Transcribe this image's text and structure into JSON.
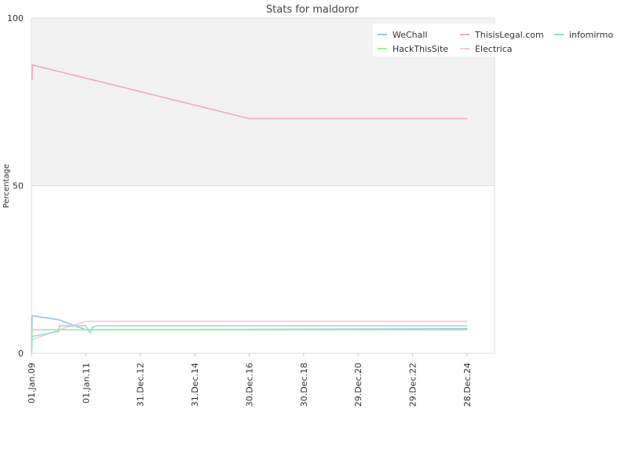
{
  "chart_data": {
    "type": "line",
    "title": "Stats for maldoror",
    "xlabel": "",
    "ylabel": "Percentage",
    "ylim": [
      0,
      100
    ],
    "yticks": [
      "0",
      "50",
      "100"
    ],
    "xlim": [
      "2009-01-01",
      "2026-01-01"
    ],
    "xticks": [
      {
        "date": "2009-01-01",
        "label": "01.Jan.09"
      },
      {
        "date": "2011-01-01",
        "label": "01.Jan.11"
      },
      {
        "date": "2012-12-31",
        "label": "31.Dec.12"
      },
      {
        "date": "2014-12-31",
        "label": "31.Dec.14"
      },
      {
        "date": "2016-12-30",
        "label": "30.Dec.16"
      },
      {
        "date": "2018-12-30",
        "label": "30.Dec.18"
      },
      {
        "date": "2020-12-29",
        "label": "29.Dec.20"
      },
      {
        "date": "2022-12-29",
        "label": "29.Dec.22"
      },
      {
        "date": "2024-12-28",
        "label": "28.Dec.24"
      }
    ],
    "grid": "band above 50",
    "legend_position": "top-right",
    "series": [
      {
        "name": "WeChall",
        "color": "#9fc0e6",
        "points": [
          {
            "x": "2009-01-05",
            "y": 5
          },
          {
            "x": "2009-01-10",
            "y": 11.2
          },
          {
            "x": "2010-01-01",
            "y": 10
          },
          {
            "x": "2011-01-01",
            "y": 7
          },
          {
            "x": "2011-06-01",
            "y": 7
          },
          {
            "x": "2025-01-01",
            "y": 7.3
          }
        ]
      },
      {
        "name": "HackThisSite",
        "color": "#a8e8a8",
        "points": [
          {
            "x": "2009-01-05",
            "y": 0
          },
          {
            "x": "2009-01-10",
            "y": 7
          },
          {
            "x": "2025-01-01",
            "y": 7
          }
        ]
      },
      {
        "name": "ThisisLegal.com",
        "color": "#f0a8c8",
        "points": [
          {
            "x": "2009-01-10",
            "y": 81.5
          },
          {
            "x": "2009-01-15",
            "y": 86
          },
          {
            "x": "2017-01-01",
            "y": 70
          },
          {
            "x": "2025-01-01",
            "y": 70
          }
        ]
      },
      {
        "name": "Electrica",
        "color": "#f5c8d8",
        "points": [
          {
            "x": "2009-01-10",
            "y": 4
          },
          {
            "x": "2010-01-01",
            "y": 7
          },
          {
            "x": "2011-01-01",
            "y": 9.5
          },
          {
            "x": "2025-01-01",
            "y": 9.5
          }
        ]
      },
      {
        "name": "infomirmo",
        "color": "#8fe0d0",
        "points": [
          {
            "x": "2009-01-05",
            "y": 1
          },
          {
            "x": "2009-01-10",
            "y": 5
          },
          {
            "x": "2010-01-01",
            "y": 6.5
          },
          {
            "x": "2010-01-10",
            "y": 8.2
          },
          {
            "x": "2011-01-01",
            "y": 8.2
          },
          {
            "x": "2011-03-01",
            "y": 6
          },
          {
            "x": "2011-04-01",
            "y": 7.8
          },
          {
            "x": "2011-06-01",
            "y": 8.2
          },
          {
            "x": "2025-01-01",
            "y": 8.2
          }
        ]
      }
    ]
  }
}
